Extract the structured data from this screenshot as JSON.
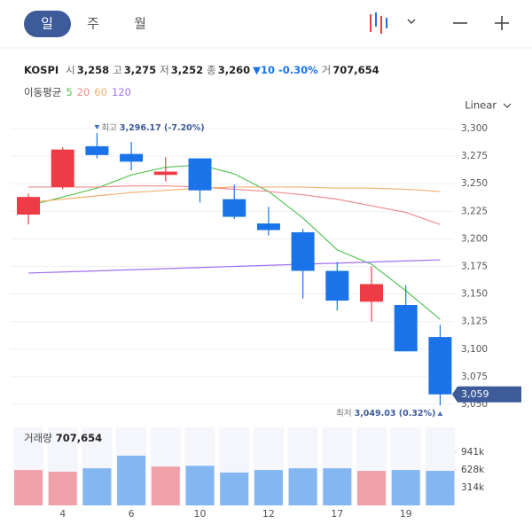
{
  "header": {
    "tabs": [
      "일",
      "주",
      "월"
    ]
  },
  "chart_data": {
    "type": "candlestick",
    "symbol": "KOSPI",
    "quote": [
      {
        "label": "시",
        "value": "3,258"
      },
      {
        "label": "고",
        "value": "3,275"
      },
      {
        "label": "저",
        "value": "3,252"
      },
      {
        "label": "종",
        "value": "3,260"
      }
    ],
    "change": "▼10 -0.30%",
    "volume_quote": {
      "label": "거",
      "value": "707,654"
    },
    "ma_title": "이동평균",
    "scale": "Linear",
    "categories": [
      null,
      "4",
      null,
      "6",
      null,
      "10",
      null,
      "12",
      null,
      "17",
      null,
      "19",
      null
    ],
    "open": [
      3222,
      3247,
      3284,
      3277,
      3258,
      3273,
      3236,
      3214,
      3206,
      3171,
      3143,
      3140,
      3111
    ],
    "high": [
      3241,
      3283,
      3296,
      3288,
      3274,
      3273,
      3249,
      3229,
      3209,
      3179,
      3175,
      3158,
      3122
    ],
    "low": [
      3213,
      3245,
      3273,
      3262,
      3252,
      3233,
      3218,
      3203,
      3146,
      3135,
      3125,
      3098,
      3049
    ],
    "close": [
      3238,
      3281,
      3276,
      3270,
      3261,
      3244,
      3220,
      3208,
      3171,
      3144,
      3159,
      3098,
      3059
    ],
    "up_color": "#ee3b45",
    "down_color": "#1a73e8",
    "series": [
      {
        "name": "5",
        "color": "#55c455",
        "values": [
          3230,
          3238,
          3246,
          3258,
          3265,
          3267,
          3259,
          3243,
          3219,
          3190,
          3177,
          3153,
          3127
        ]
      },
      {
        "name": "20",
        "color": "#f08a8a",
        "values": [
          3247,
          3247,
          3247,
          3248,
          3248,
          3247,
          3245,
          3243,
          3240,
          3236,
          3230,
          3224,
          3213
        ]
      },
      {
        "name": "60",
        "color": "#f0b070",
        "values": [
          3233,
          3236,
          3239,
          3242,
          3244,
          3246,
          3247,
          3247,
          3247,
          3246,
          3246,
          3245,
          3243
        ]
      },
      {
        "name": "120",
        "color": "#a070f0",
        "values": [
          3169,
          3170,
          3171,
          3172,
          3173,
          3174,
          3175,
          3176,
          3177,
          3178,
          3179,
          3180,
          3181
        ]
      }
    ],
    "ylim": [
      3040,
      3310
    ],
    "yticks": [
      {
        "value": 3300,
        "label": "3,300"
      },
      {
        "value": 3275,
        "label": "3,275"
      },
      {
        "value": 3250,
        "label": "3,250"
      },
      {
        "value": 3225,
        "label": "3,225"
      },
      {
        "value": 3200,
        "label": "3,200"
      },
      {
        "value": 3175,
        "label": "3,175"
      },
      {
        "value": 3150,
        "label": "3,150"
      },
      {
        "value": 3125,
        "label": "3,125"
      },
      {
        "value": 3100,
        "label": "3,100"
      },
      {
        "value": 3075,
        "label": "3,075"
      },
      {
        "value": 3050,
        "label": "3,050"
      }
    ],
    "last_price": 3059,
    "last_price_label": "3,059",
    "annotations": [
      {
        "label": "최고",
        "text": "3,296.17 (-7.20%)"
      },
      {
        "label": "최저",
        "text": "3,049.03 (0.32%)"
      }
    ],
    "volume": {
      "title": "거래량",
      "total": "707,654",
      "values": [
        626000,
        596000,
        656000,
        880000,
        686000,
        700000,
        581000,
        626000,
        656000,
        656000,
        611000,
        626000,
        611000
      ],
      "ylim": [
        0,
        1380000
      ],
      "yticks": [
        {
          "value": 941000,
          "label": "941k"
        },
        {
          "value": 628000,
          "label": "628k"
        },
        {
          "value": 314000,
          "label": "314k"
        }
      ],
      "up_color": "#f0a1a8",
      "down_color": "#84b6f2"
    }
  }
}
